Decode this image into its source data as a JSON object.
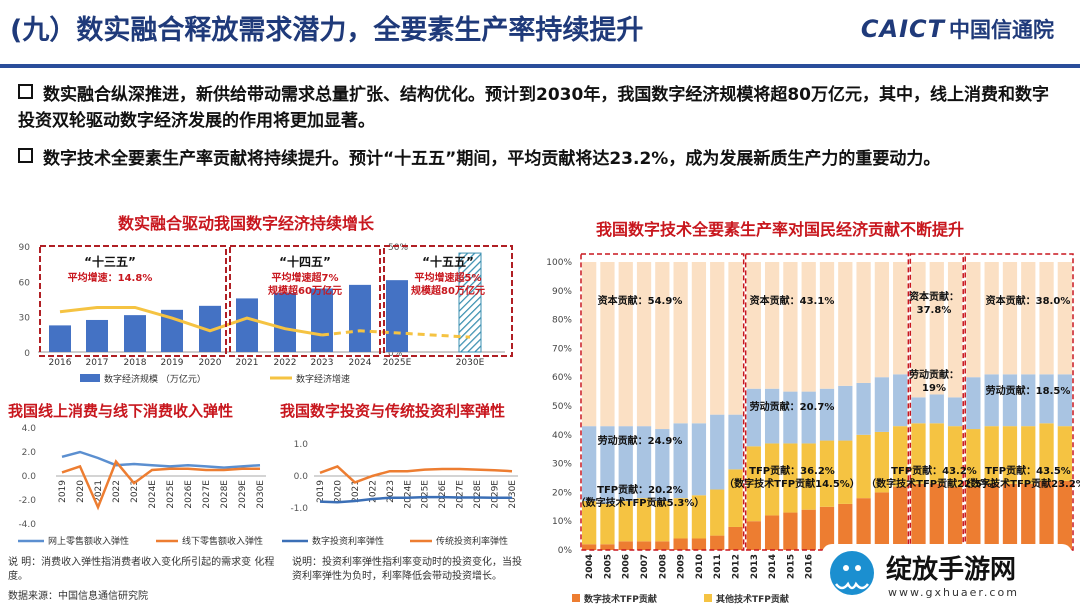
{
  "header": {
    "title": "(九）数实融合释放需求潜力，全要素生产率持续提升",
    "brand_en": "CAICT",
    "brand_cn": "中国信通院"
  },
  "bullets": [
    "数实融合纵深推进，新供给带动需求总量扩张、结构优化。预计到2030年，我国数字经济规模将超80万亿元，其中，线上消费和数字投资双轮驱动数字经济发展的作用将更加显著。",
    "数字技术全要素生产率贡献将持续提升。预计“十五五”期间，平均贡献将达23.2%，成为发展新质生产力的重要动力。"
  ],
  "notes": {
    "left": "说 明：消费收入弹性指消费者收入变化所引起的需求变 化程度。",
    "right": "说明：投资利率弹性指利率变动时的投资变化，当投资利率弹性为负时，利率降低会带动投资增长。",
    "source": "数据来源：中国信息通信研究院"
  },
  "corner_logo": {
    "text": "绽放手游网",
    "url": "www.gxhuaer.com"
  },
  "colors": {
    "dark_blue": "#1f3a7a",
    "red": "#c8171e",
    "bar_blue": "#4472c4",
    "yellow": "#f5c342",
    "orange": "#ed7d31",
    "light_blue": "#a9c4e2",
    "light_orange": "#fbe0c4"
  },
  "chart_data": [
    {
      "type": "bar",
      "title": "数实融合驱动我国数字经济持续增长",
      "categories": [
        "2016",
        "2017",
        "2018",
        "2019",
        "2020",
        "2021",
        "2022",
        "2023",
        "2024",
        "2025E",
        "2030E"
      ],
      "y_ticks": [
        "0",
        "30",
        "60",
        "90"
      ],
      "y2_ticks": [
        "0%",
        "50%"
      ],
      "series": [
        {
          "name": "数字经济规模 （万亿元）",
          "values": [
            22.6,
            27.2,
            31.3,
            35.8,
            39.2,
            45.5,
            50.2,
            53.9,
            57,
            61,
            84
          ],
          "axis": "left"
        },
        {
          "name": "数字经济增速",
          "values": [
            19,
            21,
            21,
            16,
            10,
            16,
            11,
            8,
            10,
            9,
            7
          ],
          "axis": "right"
        }
      ],
      "ylim": [
        0,
        90
      ],
      "y2lim": [
        0,
        50
      ],
      "periods": [
        {
          "label": "“十三五”",
          "text1": "平均增速：14.8%",
          "text2": ""
        },
        {
          "label": "“十四五”",
          "text1": "平均增速超7%",
          "text2": "规模超60万亿元"
        },
        {
          "label": "“十五五”",
          "text1": "平均增速超5%",
          "text2": "规模超80万亿元"
        }
      ]
    },
    {
      "type": "line",
      "title": "我国线上消费与线下消费收入弹性",
      "categories": [
        "2019",
        "2020",
        "2021",
        "2022",
        "2023",
        "2024E",
        "2025E",
        "2026E",
        "2027E",
        "2028E",
        "2029E",
        "2030E"
      ],
      "y_ticks": [
        "-4.0",
        "-2.0",
        "0.0",
        "2.0",
        "4.0"
      ],
      "ylim": [
        -4,
        4
      ],
      "series": [
        {
          "name": "网上零售额收入弹性",
          "values": [
            1.6,
            2.0,
            1.5,
            0.9,
            1.0,
            0.9,
            0.8,
            0.9,
            0.8,
            0.7,
            0.8,
            0.9
          ]
        },
        {
          "name": "线下零售额收入弹性",
          "values": [
            0.3,
            0.8,
            -2.6,
            1.2,
            -0.6,
            0.5,
            0.6,
            0.6,
            0.5,
            0.5,
            0.6,
            0.6
          ]
        }
      ]
    },
    {
      "type": "line",
      "title": "我国数字投资与传统投资利率弹性",
      "categories": [
        "2019",
        "2020",
        "2021",
        "2022",
        "2023",
        "2024E",
        "2025E",
        "2026E",
        "2027E",
        "2028E",
        "2029E",
        "2030E"
      ],
      "y_ticks": [
        "-1.0",
        "0.0",
        "1.0"
      ],
      "ylim": [
        -1.5,
        1.5
      ],
      "series": [
        {
          "name": "数字投资利率弹性",
          "values": [
            -0.8,
            -0.82,
            -0.78,
            -0.72,
            -0.68,
            -0.68,
            -0.66,
            -0.66,
            -0.67,
            -0.67,
            -0.68,
            -0.68
          ]
        },
        {
          "name": "传统投资利率弹性",
          "values": [
            0.1,
            0.3,
            -0.2,
            0.0,
            0.15,
            0.15,
            0.2,
            0.22,
            0.22,
            0.2,
            0.18,
            0.15
          ]
        }
      ]
    },
    {
      "type": "bar",
      "stacked": true,
      "title": "我国数字技术全要素生产率对国民经济贡献不断提升",
      "categories": [
        "2004",
        "2005",
        "2006",
        "2007",
        "2008",
        "2009",
        "2010",
        "2011",
        "2012",
        "2013",
        "2014",
        "2015",
        "2016",
        "2017",
        "2018",
        "2019",
        "2020",
        "2021",
        "2022",
        "2023",
        "2024E",
        "2025E",
        "2026E",
        "2027E",
        "2028E",
        "2029E",
        "2030E"
      ],
      "y_ticks": [
        "0%",
        "10%",
        "20%",
        "30%",
        "40%",
        "50%",
        "60%",
        "70%",
        "80%",
        "90%",
        "100%"
      ],
      "ylim": [
        0,
        100
      ],
      "series": [
        {
          "name": "数字技术TFP贡献",
          "values": [
            2,
            2,
            3,
            3,
            3,
            4,
            4,
            5,
            8,
            10,
            12,
            13,
            14,
            15,
            16,
            18,
            20,
            22,
            23,
            23,
            22,
            22,
            23,
            23,
            23,
            24,
            24
          ]
        },
        {
          "name": "其他技术TFP贡献",
          "values": [
            15,
            14,
            14,
            15,
            14,
            14,
            15,
            16,
            20,
            26,
            25,
            24,
            23,
            23,
            22,
            22,
            21,
            21,
            21,
            21,
            21,
            20,
            20,
            20,
            20,
            20,
            19
          ]
        },
        {
          "name": "劳动贡献",
          "values": [
            26,
            27,
            26,
            25,
            25,
            26,
            25,
            26,
            19,
            20,
            19,
            18,
            18,
            18,
            19,
            18,
            19,
            18,
            9,
            10,
            10,
            18,
            18,
            18,
            18,
            17,
            18
          ]
        },
        {
          "name": "资本贡献",
          "values": [
            57,
            57,
            57,
            57,
            58,
            56,
            56,
            53,
            53,
            44,
            44,
            45,
            45,
            44,
            43,
            42,
            40,
            39,
            47,
            46,
            47,
            40,
            39,
            39,
            39,
            39,
            39
          ]
        }
      ],
      "legend": [
        "数字技术TFP贡献",
        "其他技术TFP贡献"
      ],
      "annotations": [
        {
          "text": "资本贡献：54.9%"
        },
        {
          "text": "劳动贡献：24.9%"
        },
        {
          "text": "TFP贡献：20.2%（数字技术TFP贡献5.3%）"
        },
        {
          "text": "资本贡献：43.1%"
        },
        {
          "text": "劳动贡献：20.7%"
        },
        {
          "text": "TFP贡献：36.2%（数字技术TFP贡献14.5%）"
        },
        {
          "text": "资本贡献：37.8%"
        },
        {
          "text": "劳动贡献：19%"
        },
        {
          "text": "TFP贡献：43.2%（数字技术TFP贡献22.5%）"
        },
        {
          "text": "资本贡献：38.0%"
        },
        {
          "text": "劳动贡献：18.5%"
        },
        {
          "text": "TFP贡献：43.5%（数字技术TFP贡献23.2%）"
        }
      ]
    }
  ]
}
